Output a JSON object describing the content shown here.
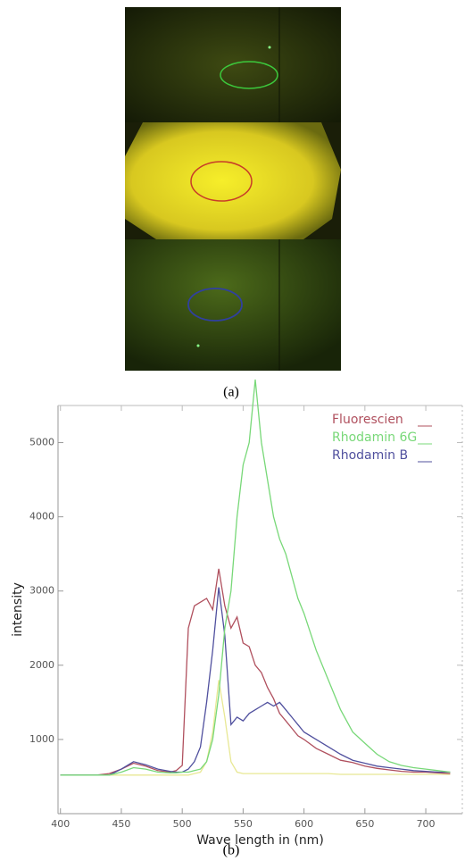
{
  "figure_a": {
    "caption": "(a)"
  },
  "figure_b": {
    "caption": "(b)"
  },
  "chart_data": {
    "type": "line",
    "x_label": "Wave length in (nm)",
    "y_label": "intensity",
    "xlim": [
      398,
      730
    ],
    "ylim": [
      0,
      5500
    ],
    "xticks": [
      400,
      450,
      500,
      550,
      600,
      650,
      700
    ],
    "yticks": [
      1000,
      2000,
      3000,
      4000,
      5000
    ],
    "legend": "upper right",
    "x": [
      400,
      410,
      420,
      430,
      440,
      450,
      460,
      470,
      480,
      490,
      495,
      500,
      505,
      510,
      515,
      520,
      525,
      530,
      535,
      540,
      545,
      550,
      555,
      560,
      565,
      570,
      575,
      580,
      585,
      590,
      595,
      600,
      610,
      620,
      630,
      640,
      650,
      660,
      670,
      680,
      690,
      700,
      710,
      720
    ],
    "series": [
      {
        "name": "Fluorescien",
        "color": "#b0505e",
        "values": [
          520,
          520,
          520,
          520,
          540,
          600,
          680,
          640,
          580,
          560,
          580,
          650,
          2500,
          2800,
          2850,
          2900,
          2750,
          3300,
          2800,
          2500,
          2650,
          2300,
          2250,
          2000,
          1900,
          1700,
          1550,
          1350,
          1250,
          1150,
          1050,
          1000,
          880,
          800,
          720,
          690,
          640,
          610,
          590,
          570,
          560,
          560,
          550,
          540
        ]
      },
      {
        "name": "Rhodamin 6G",
        "color": "#78d878",
        "values": [
          520,
          520,
          520,
          520,
          520,
          560,
          620,
          600,
          560,
          550,
          550,
          560,
          560,
          580,
          600,
          700,
          1000,
          1600,
          2500,
          3000,
          4000,
          4700,
          5000,
          5850,
          5000,
          4500,
          4000,
          3700,
          3500,
          3200,
          2900,
          2700,
          2200,
          1800,
          1400,
          1100,
          950,
          800,
          700,
          650,
          620,
          600,
          580,
          560
        ]
      },
      {
        "name": "Rhodamin B",
        "color": "#50509e",
        "values": [
          520,
          520,
          520,
          520,
          520,
          600,
          700,
          660,
          600,
          570,
          560,
          560,
          600,
          700,
          900,
          1500,
          2200,
          3050,
          2400,
          1200,
          1300,
          1250,
          1350,
          1400,
          1450,
          1500,
          1450,
          1500,
          1400,
          1300,
          1200,
          1100,
          1000,
          900,
          800,
          720,
          680,
          640,
          620,
          600,
          580,
          570,
          560,
          560
        ]
      },
      {
        "color": "#e8e894",
        "values": [
          520,
          520,
          520,
          520,
          520,
          520,
          520,
          520,
          520,
          520,
          520,
          520,
          520,
          540,
          560,
          700,
          1100,
          1800,
          1300,
          700,
          560,
          540,
          540,
          540,
          540,
          540,
          540,
          540,
          540,
          540,
          540,
          540,
          540,
          540,
          530,
          530,
          530,
          530,
          530,
          530,
          530,
          530,
          530,
          530
        ]
      }
    ]
  }
}
